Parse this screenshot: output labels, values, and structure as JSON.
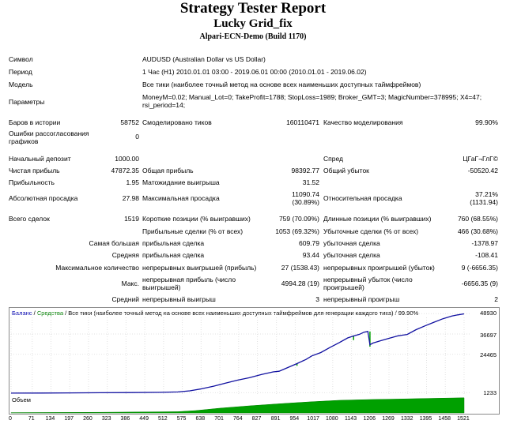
{
  "header": {
    "title": "Strategy Tester Report",
    "expert": "Lucky Grid_fix",
    "server": "Alpari-ECN-Demo (Build 1170)"
  },
  "info": {
    "symbol_label": "Символ",
    "symbol_value": "AUDUSD (Australian Dollar vs US Dollar)",
    "period_label": "Период",
    "period_value": "1 Час (H1) 2010.01.01 03:00 - 2019.06.01 00:00 (2010.01.01 - 2019.06.02)",
    "model_label": "Модель",
    "model_value": "Все тики (наиболее точный метод на основе всех наименьших доступных таймфреймов)",
    "params_label": "Параметры",
    "params_value": "MoneyM=0.02; Manual_Lot=0; TakeProfit=1788; StopLoss=1989; Broker_GMT=3; MagicNumber=378995; X4=47; rsi_period=14;"
  },
  "quality": {
    "bars_label": "Баров в истории",
    "bars_value": "58752",
    "ticks_label": "Смоделировано тиков",
    "ticks_value": "160110471",
    "mq_label": "Качество моделирования",
    "mq_value": "99.90%",
    "errors_label": "Ошибки рассогласования графиков",
    "errors_value": "0"
  },
  "stats": {
    "deposit_label": "Начальный депозит",
    "deposit_value": "1000.00",
    "spread_label": "Спред",
    "spread_value": "ЦГаГ¬ГлГ©",
    "net_label": "Чистая прибыль",
    "net_value": "47872.35",
    "gross_profit_label": "Общая прибыль",
    "gross_profit_value": "98392.77",
    "gross_loss_label": "Общий убыток",
    "gross_loss_value": "-50520.42",
    "pf_label": "Прибыльность",
    "pf_value": "1.95",
    "expected_label": "Матожидание выигрыша",
    "expected_value": "31.52",
    "abs_dd_label": "Абсолютная просадка",
    "abs_dd_value": "27.98",
    "max_dd_label": "Максимальная просадка",
    "max_dd_value": "11090.74 (30.89%)",
    "rel_dd_label": "Относительная просадка",
    "rel_dd_value": "37.21% (1131.94)"
  },
  "trades": {
    "total_label": "Всего сделок",
    "total_value": "1519",
    "short_label": "Короткие позиции (% выигравших)",
    "short_value": "759 (70.09%)",
    "long_label": "Длинные позиции (% выигравших)",
    "long_value": "760 (68.55%)",
    "win_label": "Прибыльные сделки (% от всех)",
    "win_value": "1053 (69.32%)",
    "loss_label": "Убыточные сделки (% от всех)",
    "loss_value": "466 (30.68%)",
    "largest_label": "Самая большая",
    "largest_win_label": "прибыльная сделка",
    "largest_win_value": "609.79",
    "largest_loss_label": "убыточная сделка",
    "largest_loss_value": "-1378.97",
    "average_label": "Средняя",
    "avg_win_label": "прибыльная сделка",
    "avg_win_value": "93.44",
    "avg_loss_label": "убыточная сделка",
    "avg_loss_value": "-108.41",
    "maxcount_label": "Максимальное количество",
    "mc_wins_label": "непрерывных выигрышей (прибыль)",
    "mc_wins_value": "27 (1538.43)",
    "mc_losses_label": "непрерывных проигрышей (убыток)",
    "mc_losses_value": "9 (-6656.35)",
    "max_label": "Макс.",
    "mp_label": "непрерывная прибыль (число выигрышей)",
    "mp_value": "4994.28 (19)",
    "ml_label": "непрерывный убыток (число проигрышей)",
    "ml_value": "-6656.35 (9)",
    "avgcons_label": "Средний",
    "ac_wins_label": "непрерывный выигрыш",
    "ac_wins_value": "3",
    "ac_losses_label": "непрерывный проигрыш",
    "ac_losses_value": "2"
  },
  "chart_data": {
    "type": "line",
    "legend": {
      "balance": "Баланс",
      "sep1": " / ",
      "equity": "Средства",
      "sep2": " / Все тики (наиболее точный метод на основе всех наименьших доступных таймфреймов для генерации каждого тика) / 99.90%"
    },
    "y_ticks": [
      1233,
      24465,
      36697,
      48930
    ],
    "x_ticks": [
      0,
      71,
      134,
      197,
      260,
      323,
      386,
      449,
      512,
      575,
      638,
      701,
      764,
      827,
      891,
      954,
      1017,
      1080,
      1143,
      1206,
      1269,
      1332,
      1395,
      1458,
      1521
    ],
    "ylim": [
      0,
      50500
    ],
    "xlim": [
      0,
      1545
    ],
    "balance": [
      [
        0,
        1000
      ],
      [
        100,
        1050
      ],
      [
        200,
        1150
      ],
      [
        300,
        1250
      ],
      [
        400,
        1350
      ],
      [
        500,
        1500
      ],
      [
        560,
        1700
      ],
      [
        600,
        2400
      ],
      [
        640,
        3600
      ],
      [
        680,
        5200
      ],
      [
        720,
        7000
      ],
      [
        760,
        8800
      ],
      [
        800,
        10300
      ],
      [
        840,
        12200
      ],
      [
        880,
        13800
      ],
      [
        900,
        14200
      ],
      [
        930,
        16500
      ],
      [
        960,
        18800
      ],
      [
        990,
        21300
      ],
      [
        1010,
        23500
      ],
      [
        1040,
        25500
      ],
      [
        1070,
        28500
      ],
      [
        1100,
        31300
      ],
      [
        1130,
        34300
      ],
      [
        1150,
        35500
      ],
      [
        1170,
        36500
      ],
      [
        1185,
        37800
      ],
      [
        1198,
        38200
      ],
      [
        1205,
        30200
      ],
      [
        1215,
        31200
      ],
      [
        1240,
        32600
      ],
      [
        1270,
        34100
      ],
      [
        1300,
        35600
      ],
      [
        1330,
        36400
      ],
      [
        1360,
        39300
      ],
      [
        1390,
        41600
      ],
      [
        1420,
        43800
      ],
      [
        1450,
        45900
      ],
      [
        1480,
        47500
      ],
      [
        1500,
        48200
      ],
      [
        1521,
        48850
      ]
    ],
    "equity_dips": [
      [
        960,
        18800,
        17500
      ],
      [
        1150,
        35500,
        33000
      ],
      [
        1205,
        38200,
        29000
      ]
    ],
    "volume_label": "Объем",
    "volume": [
      [
        0,
        0.02
      ],
      [
        300,
        0.04
      ],
      [
        560,
        0.08
      ],
      [
        620,
        0.15
      ],
      [
        700,
        0.3
      ],
      [
        800,
        0.45
      ],
      [
        900,
        0.58
      ],
      [
        1000,
        0.7
      ],
      [
        1100,
        0.8
      ],
      [
        1205,
        0.85
      ],
      [
        1300,
        0.88
      ],
      [
        1400,
        0.92
      ],
      [
        1521,
        0.96
      ]
    ]
  }
}
